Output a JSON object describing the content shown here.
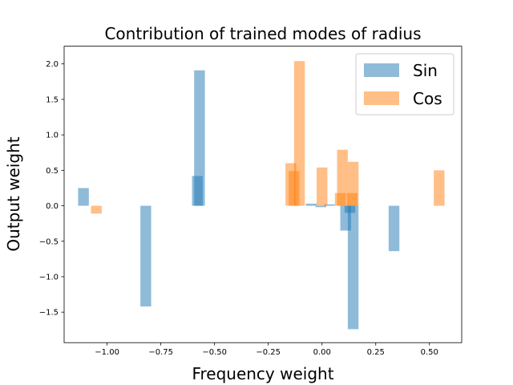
{
  "chart_data": {
    "type": "bar",
    "title": "Contribution of trained modes of radius",
    "xlabel": "Frequency weight",
    "ylabel": "Output weight",
    "xlim": [
      -1.2,
      0.65
    ],
    "ylim": [
      -1.93,
      2.25
    ],
    "xticks": [
      -1.0,
      -0.75,
      -0.5,
      -0.25,
      0.0,
      0.25,
      0.5
    ],
    "xtick_labels": [
      "−1.00",
      "−0.75",
      "−0.50",
      "−0.25",
      "0.00",
      "0.25",
      "0.50"
    ],
    "yticks": [
      -1.5,
      -1.0,
      -0.5,
      0.0,
      0.5,
      1.0,
      1.5,
      2.0
    ],
    "ytick_labels": [
      "−1.5",
      "−1.0",
      "−0.5",
      "0.0",
      "0.5",
      "1.0",
      "1.5",
      "2.0"
    ],
    "bar_width": 0.05,
    "legend_position": "top-right",
    "grid": false,
    "series": [
      {
        "name": "Sin",
        "color": "#1f77b4",
        "opacity": 0.5,
        "bars": [
          {
            "x": -1.11,
            "y": 0.25
          },
          {
            "x": -0.82,
            "y": -1.42
          },
          {
            "x": -0.57,
            "y": 1.91
          },
          {
            "x": -0.58,
            "y": 0.42
          },
          {
            "x": -0.05,
            "y": 0.03
          },
          {
            "x": -0.005,
            "y": -0.02
          },
          {
            "x": 0.035,
            "y": 0.02
          },
          {
            "x": 0.11,
            "y": -0.35
          },
          {
            "x": 0.13,
            "y": -0.1
          },
          {
            "x": 0.145,
            "y": -1.74
          },
          {
            "x": 0.335,
            "y": -0.64
          }
        ]
      },
      {
        "name": "Cos",
        "color": "#ff7f0e",
        "opacity": 0.5,
        "bars": [
          {
            "x": -1.05,
            "y": -0.11
          },
          {
            "x": -0.145,
            "y": 0.6
          },
          {
            "x": -0.13,
            "y": 0.49
          },
          {
            "x": -0.105,
            "y": 2.04
          },
          {
            "x": 0.0,
            "y": 0.54
          },
          {
            "x": 0.095,
            "y": 0.79
          },
          {
            "x": 0.085,
            "y": 0.18
          },
          {
            "x": 0.145,
            "y": 0.62
          },
          {
            "x": 0.14,
            "y": 0.18
          },
          {
            "x": 0.545,
            "y": 0.5
          }
        ]
      }
    ]
  }
}
